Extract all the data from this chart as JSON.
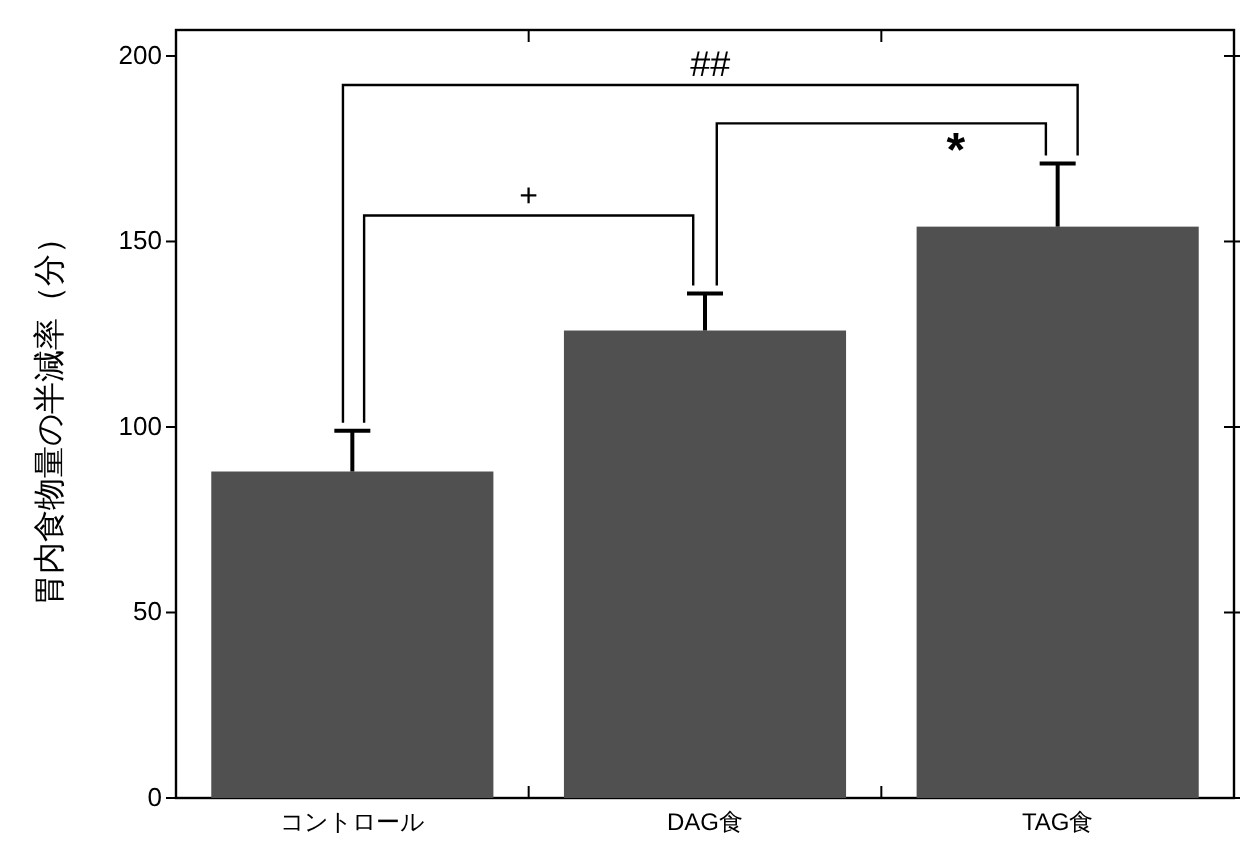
{
  "chart_data": {
    "type": "bar",
    "ylabel": "胃内食物量の半減率（分）",
    "categories": [
      "コントロール",
      "DAG食",
      "TAG食"
    ],
    "values": [
      88,
      126,
      154
    ],
    "errors": [
      11,
      10,
      17
    ],
    "color": "#505050",
    "ylim": [
      0,
      207
    ],
    "yticks": [
      0,
      50,
      100,
      150,
      200
    ],
    "annotations": [
      "##",
      "+",
      "*"
    ],
    "grid": false
  }
}
